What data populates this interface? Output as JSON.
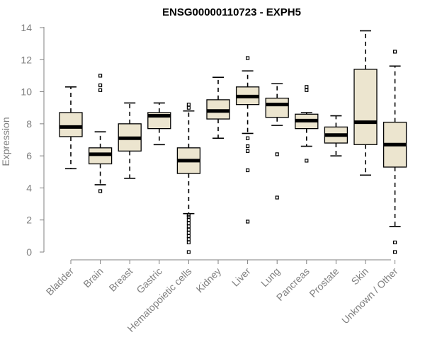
{
  "chart_data": {
    "type": "boxplot",
    "title": "ENSG00000110723 - EXPH5",
    "xlabel": "",
    "ylabel": "Expression",
    "ylim": [
      0,
      14
    ],
    "yticks": [
      0,
      2,
      4,
      6,
      8,
      10,
      12,
      14
    ],
    "box_color": "#ece5cf",
    "categories": [
      "Bladder",
      "Brain",
      "Breast",
      "Gastric",
      "Hematopoietic cells",
      "Kidney",
      "Liver",
      "Lung",
      "Pancreas",
      "Prostate",
      "Skin",
      "Unknown / Other"
    ],
    "boxes": [
      {
        "category": "Bladder",
        "whisker_low": 5.2,
        "q1": 7.2,
        "median": 7.8,
        "q3": 8.7,
        "whisker_high": 10.3,
        "outliers": []
      },
      {
        "category": "Brain",
        "whisker_low": 4.2,
        "q1": 5.5,
        "median": 6.1,
        "q3": 6.5,
        "whisker_high": 7.5,
        "outliers": [
          3.8,
          10.1,
          10.4,
          11.0
        ]
      },
      {
        "category": "Breast",
        "whisker_low": 4.6,
        "q1": 6.3,
        "median": 7.1,
        "q3": 8.0,
        "whisker_high": 9.3,
        "outliers": []
      },
      {
        "category": "Gastric",
        "whisker_low": 6.7,
        "q1": 7.7,
        "median": 8.5,
        "q3": 8.7,
        "whisker_high": 9.3,
        "outliers": []
      },
      {
        "category": "Hematopoietic cells",
        "whisker_low": 2.4,
        "q1": 4.9,
        "median": 5.7,
        "q3": 6.5,
        "whisker_high": 8.8,
        "outliers": [
          0.0,
          0.6,
          0.8,
          1.0,
          1.2,
          1.4,
          1.6,
          1.8,
          2.0,
          2.2,
          2.3,
          9.0,
          9.2
        ]
      },
      {
        "category": "Kidney",
        "whisker_low": 7.1,
        "q1": 8.3,
        "median": 8.8,
        "q3": 9.5,
        "whisker_high": 10.9,
        "outliers": []
      },
      {
        "category": "Liver",
        "whisker_low": 7.4,
        "q1": 9.2,
        "median": 9.7,
        "q3": 10.3,
        "whisker_high": 11.3,
        "outliers": [
          1.9,
          5.1,
          6.3,
          6.6,
          7.1,
          12.1
        ]
      },
      {
        "category": "Lung",
        "whisker_low": 7.9,
        "q1": 8.4,
        "median": 9.2,
        "q3": 9.6,
        "whisker_high": 10.5,
        "outliers": [
          3.4,
          6.1
        ]
      },
      {
        "category": "Pancreas",
        "whisker_low": 6.6,
        "q1": 7.7,
        "median": 8.2,
        "q3": 8.6,
        "whisker_high": 8.7,
        "outliers": [
          5.7,
          10.1,
          10.3
        ]
      },
      {
        "category": "Prostate",
        "whisker_low": 6.0,
        "q1": 6.8,
        "median": 7.3,
        "q3": 7.8,
        "whisker_high": 8.5,
        "outliers": []
      },
      {
        "category": "Skin",
        "whisker_low": 4.8,
        "q1": 6.7,
        "median": 8.1,
        "q3": 11.4,
        "whisker_high": 13.8,
        "outliers": []
      },
      {
        "category": "Unknown / Other",
        "whisker_low": 1.6,
        "q1": 5.3,
        "median": 6.7,
        "q3": 8.1,
        "whisker_high": 11.6,
        "outliers": [
          0.0,
          0.6,
          12.5
        ]
      }
    ]
  }
}
